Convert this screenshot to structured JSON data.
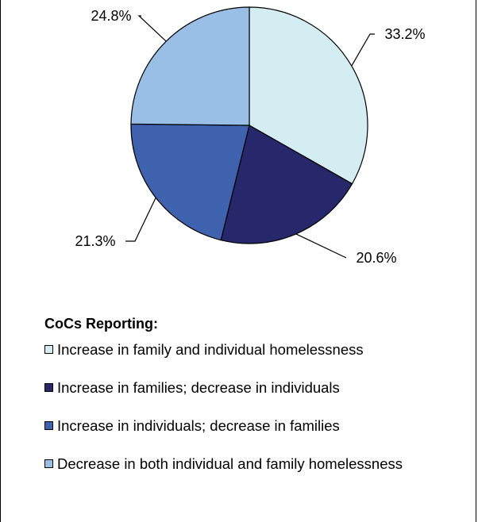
{
  "chart_data": {
    "type": "pie",
    "series": [
      {
        "value": 33.2,
        "label": "33.2%",
        "color": "#d3edf2"
      },
      {
        "value": 20.6,
        "label": "20.6%",
        "color": "#26286b"
      },
      {
        "value": 21.3,
        "label": "21.3%",
        "color": "#3f62ae"
      },
      {
        "value": 24.8,
        "label": "24.8%",
        "color": "#99bfe6"
      }
    ]
  },
  "legend": {
    "title": "CoCs Reporting:",
    "items": [
      {
        "label": "Increase in family and individual homelessness",
        "color": "#d3edf2"
      },
      {
        "label": "Increase in families; decrease in individuals",
        "color": "#26286b"
      },
      {
        "label": "Increase in individuals; decrease in families",
        "color": "#3f62ae"
      },
      {
        "label": "Decrease in both individual and family homelessness",
        "color": "#99bfe6"
      }
    ]
  }
}
